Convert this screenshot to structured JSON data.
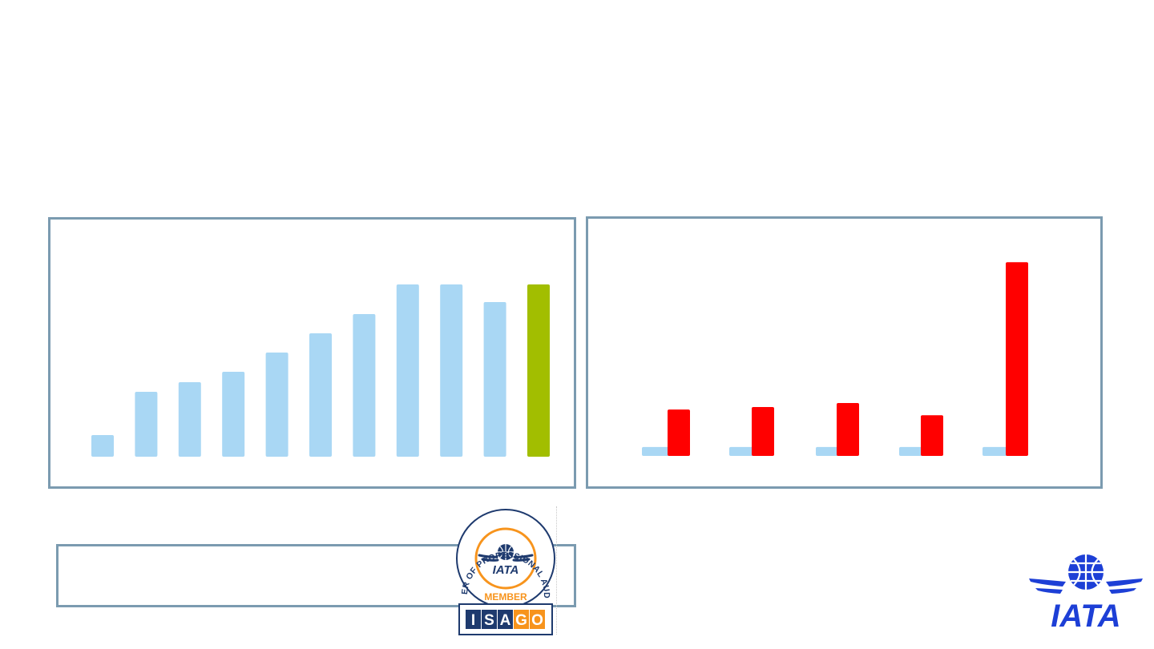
{
  "colors": {
    "panel_border": "#7b9bb0",
    "bar_blue": "#a9d7f4",
    "bar_green": "#a2be00",
    "bar_red": "#ff0000",
    "navy": "#1e3a6e",
    "orange": "#f7941d",
    "iata_blue": "#1d3fd6"
  },
  "chart_data": [
    {
      "type": "bar",
      "categories": [
        "",
        "",
        "",
        "",
        "",
        "",
        "",
        "",
        "",
        "",
        ""
      ],
      "series": [
        {
          "values": [
            27,
            81,
            93,
            106,
            130,
            154,
            178,
            215,
            215,
            193,
            215
          ]
        }
      ],
      "highlight_index": 10,
      "ylim": [
        0,
        230
      ],
      "grid": false,
      "legend": "none"
    },
    {
      "type": "bar",
      "categories": [
        "",
        "",
        "",
        "",
        ""
      ],
      "series": [
        {
          "values": [
            11,
            11,
            11,
            11,
            11
          ]
        },
        {
          "values": [
            57,
            60,
            65,
            50,
            238
          ]
        }
      ],
      "ylim": [
        0,
        250
      ],
      "grid": false,
      "legend": "none"
    }
  ],
  "badge": {
    "ring_text": "CHARTER OF PROFESSIONAL AUDITORS",
    "inner_text": "IATA",
    "member_text": "MEMBER",
    "isago_letters": [
      "I",
      "S",
      "A",
      "G",
      "O"
    ]
  },
  "logo": {
    "text": "IATA"
  }
}
